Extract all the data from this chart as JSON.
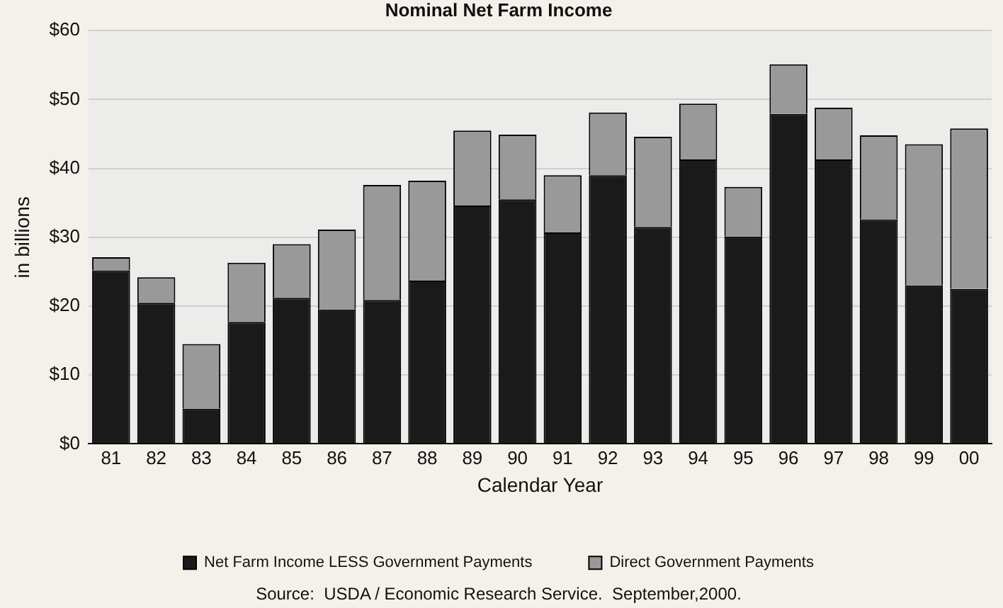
{
  "chart_data": {
    "type": "bar",
    "title": "Nominal Net Farm Income",
    "xlabel": "Calendar Year",
    "ylabel": "in billions",
    "categories": [
      "81",
      "82",
      "83",
      "84",
      "85",
      "86",
      "87",
      "88",
      "89",
      "90",
      "91",
      "92",
      "93",
      "94",
      "95",
      "96",
      "97",
      "98",
      "99",
      "00"
    ],
    "stacked": true,
    "series": [
      {
        "name": "Net Farm Income LESS Government Payments",
        "color": "#1a1a1a",
        "values": [
          25.2,
          20.5,
          5.1,
          17.7,
          21.2,
          19.5,
          20.9,
          23.7,
          34.6,
          35.5,
          30.7,
          39.0,
          31.5,
          41.3,
          30.1,
          47.9,
          41.3,
          32.6,
          23.0,
          22.5
        ]
      },
      {
        "name": "Direct Government Payments",
        "color": "#999999",
        "values": [
          1.9,
          3.7,
          9.4,
          8.6,
          7.8,
          11.6,
          16.7,
          14.5,
          10.9,
          9.4,
          8.3,
          9.1,
          13.1,
          8.1,
          7.2,
          7.2,
          7.5,
          12.2,
          20.5,
          23.3
        ]
      }
    ],
    "ylim": [
      0,
      60
    ],
    "yticks": [
      {
        "value": 0,
        "label": "$0"
      },
      {
        "value": 10,
        "label": "$10"
      },
      {
        "value": 20,
        "label": "$20"
      },
      {
        "value": 30,
        "label": "$30"
      },
      {
        "value": 40,
        "label": "$40"
      },
      {
        "value": 50,
        "label": "$50"
      },
      {
        "value": 60,
        "label": "$60"
      }
    ],
    "grid": "y",
    "legend": "bottom",
    "annotations": [
      "Source:  USDA / Economic Research Service.  September,2000."
    ]
  }
}
